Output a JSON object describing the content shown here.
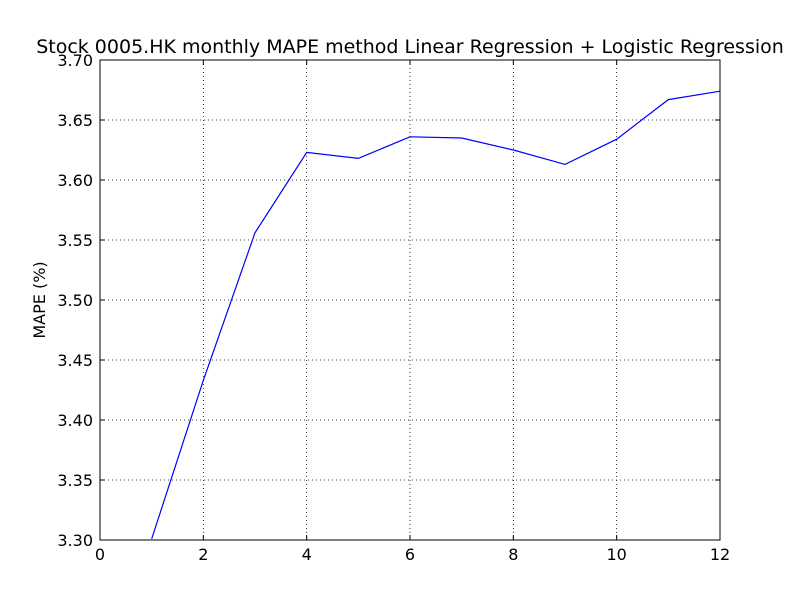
{
  "chart_data": {
    "type": "line",
    "title": "Stock 0005.HK monthly MAPE method Linear Regression + Logistic Regression",
    "xlabel": "",
    "ylabel": "MAPE (%)",
    "xlim": [
      0,
      12
    ],
    "ylim": [
      3.3,
      3.7
    ],
    "xticks": [
      0,
      2,
      4,
      6,
      8,
      10,
      12
    ],
    "xtick_labels": [
      "0",
      "2",
      "4",
      "6",
      "8",
      "10",
      "12"
    ],
    "yticks": [
      3.3,
      3.35,
      3.4,
      3.45,
      3.5,
      3.55,
      3.6,
      3.65,
      3.7
    ],
    "ytick_labels": [
      "3.30",
      "3.35",
      "3.40",
      "3.45",
      "3.50",
      "3.55",
      "3.60",
      "3.65",
      "3.70"
    ],
    "grid": true,
    "grid_style": "dotted",
    "legend": "none",
    "series": [
      {
        "color": "#0000ff",
        "x": [
          1,
          2,
          3,
          4,
          5,
          6,
          7,
          8,
          9,
          10,
          11,
          12
        ],
        "y": [
          3.301,
          3.433,
          3.556,
          3.623,
          3.618,
          3.636,
          3.635,
          3.625,
          3.613,
          3.634,
          3.667,
          3.674
        ]
      }
    ]
  }
}
